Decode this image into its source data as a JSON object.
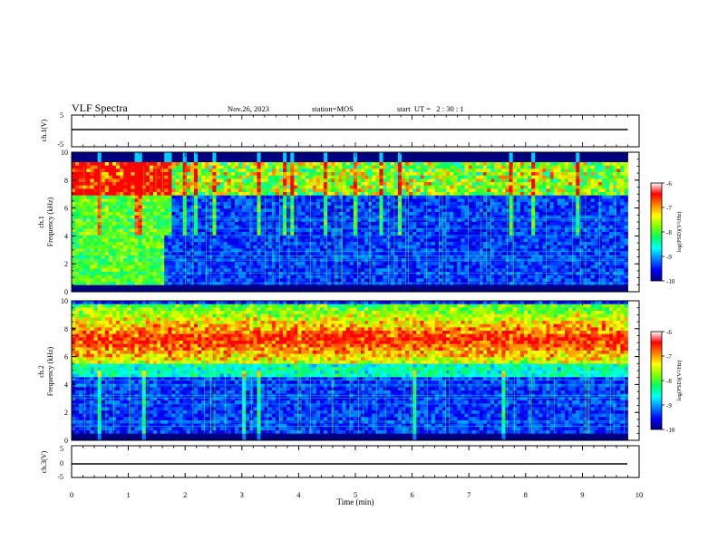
{
  "header": {
    "title": "VLF Spectra",
    "date": "Nov.26, 2023",
    "station": "station=MOS",
    "start": "start  UT =   2 : 30 : 1"
  },
  "colorbar_stops": [
    "#000080",
    "#0000ff",
    "#0080ff",
    "#00ffff",
    "#00ff60",
    "#80ff00",
    "#ffff00",
    "#ff8000",
    "#ff0000",
    "#ffffff"
  ],
  "chart_data": [
    {
      "type": "line",
      "panel": "ch1-waveform",
      "ylabel": "ch.1(V)",
      "ylim": [
        -5,
        5
      ],
      "yticks": [
        "5",
        "-5"
      ],
      "xlim": [
        0,
        10
      ],
      "series": [
        {
          "x": [
            0,
            9.8
          ],
          "y": [
            0,
            0
          ]
        }
      ]
    },
    {
      "type": "heatmap",
      "panel": "ch1-spectrogram",
      "ylabel": "ch.1 Frequency (kHz)",
      "ylim": [
        0,
        10
      ],
      "yticks": [
        "0",
        "2",
        "4",
        "6",
        "8",
        "10"
      ],
      "xlim": [
        0,
        10
      ],
      "data_xmax": 9.8,
      "colorbar": {
        "label": "log(PSD)(V²/Hz)",
        "ticks": [
          "-6",
          "-7",
          "-8",
          "-9",
          "-10"
        ],
        "range": [
          -10,
          -6
        ]
      },
      "features": {
        "broadband_interval_min": [
          0,
          1.6
        ],
        "emission_band_khz": [
          7,
          10
        ],
        "background_level": -9.3
      }
    },
    {
      "type": "heatmap",
      "panel": "ch2-spectrogram",
      "ylabel": "ch.2 Frequency (kHz)",
      "ylim": [
        0,
        10
      ],
      "yticks": [
        "0",
        "2",
        "4",
        "6",
        "8",
        "10"
      ],
      "xlim": [
        0,
        10
      ],
      "data_xmax": 9.8,
      "colorbar": {
        "label": "log(PSD)(V²/Hz)",
        "ticks": [
          "-6",
          "-7",
          "-8",
          "-9",
          "-10"
        ],
        "range": [
          -10,
          -6
        ]
      },
      "features": {
        "emission_band_khz": [
          5.5,
          9.8
        ],
        "peak_khz": 7.2,
        "background_level": -9.3
      }
    },
    {
      "type": "line",
      "panel": "ch3-waveform",
      "ylabel": "ch.3(V)",
      "ylim": [
        -5,
        5
      ],
      "yticks": [
        "5",
        "0",
        "-5"
      ],
      "xlim": [
        0,
        10
      ],
      "xticks": [
        "0",
        "1",
        "2",
        "3",
        "4",
        "5",
        "6",
        "7",
        "8",
        "9",
        "10"
      ],
      "xlabel": "Time (min)",
      "series": [
        {
          "x": [
            0,
            9.8
          ],
          "y": [
            0,
            0
          ]
        }
      ]
    }
  ]
}
